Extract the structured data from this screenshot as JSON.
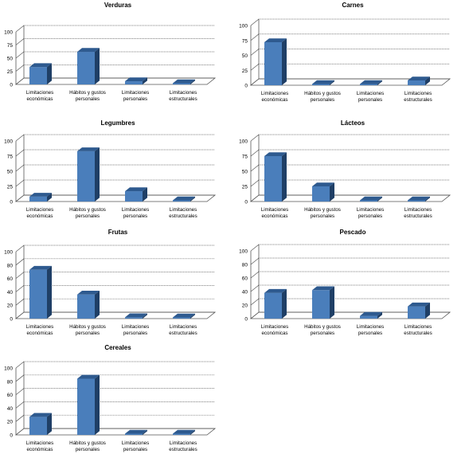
{
  "chart_data": [
    {
      "type": "bar",
      "title": "Verduras",
      "categories": [
        "Limitaciones económicas",
        "Hábitos y gustos personales",
        "Limitaciones personales",
        "Limitaciones estructurales"
      ],
      "values": [
        33,
        62,
        6,
        0
      ],
      "ylim": [
        0,
        100
      ],
      "yticks": [
        "0",
        "25",
        "50",
        "75",
        "100"
      ],
      "grid": true
    },
    {
      "type": "bar",
      "title": "Carnes",
      "categories": [
        "Limitaciones económicas",
        "Hábitos y gustos personales",
        "Limitaciones personales",
        "Limitaciones estructurales"
      ],
      "values": [
        72,
        0,
        0,
        8
      ],
      "ylim": [
        0,
        100
      ],
      "yticks": [
        "0",
        "25",
        "50",
        "75",
        "100"
      ],
      "grid": true
    },
    {
      "type": "bar",
      "title": "Legumbres",
      "categories": [
        "Limitaciones económicas",
        "Hábitos y gustos personales",
        "Limitaciones personales",
        "Limitaciones estructurales"
      ],
      "values": [
        8,
        83,
        17,
        0
      ],
      "ylim": [
        0,
        100
      ],
      "yticks": [
        "0",
        "25",
        "50",
        "75",
        "100"
      ],
      "grid": true
    },
    {
      "type": "bar",
      "title": "Lácteos",
      "categories": [
        "Limitaciones económicas",
        "Hábitos y gustos personales",
        "Limitaciones personales",
        "Limitaciones estructurales"
      ],
      "values": [
        75,
        25,
        0,
        0
      ],
      "ylim": [
        0,
        100
      ],
      "yticks": [
        "0",
        "25",
        "50",
        "75",
        "100"
      ],
      "grid": true
    },
    {
      "type": "bar",
      "title": "Frutas",
      "categories": [
        "Limitaciones económicas",
        "Hábitos y gustos personales",
        "Limitaciones personales",
        "Limitaciones estructurales"
      ],
      "values": [
        73,
        36,
        2,
        0
      ],
      "ylim": [
        0,
        100
      ],
      "yticks": [
        "0",
        "20",
        "40",
        "60",
        "80",
        "100"
      ],
      "grid": true
    },
    {
      "type": "bar",
      "title": "Pescado",
      "categories": [
        "Limitaciones económicas",
        "Hábitos y gustos personales",
        "Limitaciones personales",
        "Limitaciones estructurales"
      ],
      "values": [
        38,
        42,
        4,
        18
      ],
      "ylim": [
        0,
        100
      ],
      "yticks": [
        "0",
        "20",
        "40",
        "60",
        "80",
        "100"
      ],
      "grid": true
    },
    {
      "type": "bar",
      "title": "Cereales",
      "categories": [
        "Limitaciones económicas",
        "Hábitos y gustos personales",
        "Limitaciones personales",
        "Limitaciones estructurales"
      ],
      "values": [
        27,
        84,
        0,
        0
      ],
      "ylim": [
        0,
        100
      ],
      "yticks": [
        "0",
        "20",
        "40",
        "60",
        "80",
        "100"
      ],
      "grid": true
    }
  ]
}
